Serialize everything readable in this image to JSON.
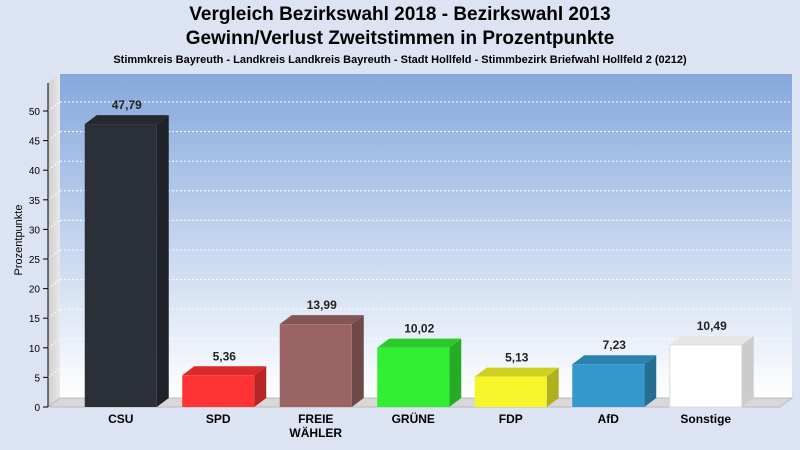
{
  "chart_data": {
    "type": "bar",
    "title": "Vergleich Bezirkswahl 2018 - Bezirkswahl 2013",
    "subtitle": "Gewinn/Verlust Zweitstimmen in Prozentpunkte",
    "caption": "Stimmkreis Bayreuth - Landkreis Landkreis Bayreuth - Stadt Hollfeld - Stimmbezirk Briefwahl Hollfeld 2 (0212)",
    "ylabel": "Prozentpunkte",
    "xlabel": "",
    "ylim": [
      0,
      55
    ],
    "yticks": [
      0,
      5,
      10,
      15,
      20,
      25,
      30,
      35,
      40,
      45,
      50
    ],
    "categories": [
      "CSU",
      "SPD",
      "FREIE WÄHLER",
      "GRÜNE",
      "FDP",
      "AfD",
      "Sonstige"
    ],
    "category_lines": [
      [
        "CSU"
      ],
      [
        "SPD"
      ],
      [
        "FREIE",
        "WÄHLER"
      ],
      [
        "GRÜNE"
      ],
      [
        "FDP"
      ],
      [
        "AfD"
      ],
      [
        "Sonstige"
      ]
    ],
    "values": [
      47.79,
      5.36,
      13.99,
      10.02,
      5.13,
      7.23,
      10.49
    ],
    "value_labels": [
      "47,79",
      "5,36",
      "13,99",
      "10,02",
      "5,13",
      "7,23",
      "10,49"
    ],
    "colors": [
      "#2b2f38",
      "#ff3333",
      "#9a6464",
      "#33ee33",
      "#f5f52a",
      "#3399cc",
      "#ffffff"
    ],
    "grid": true
  }
}
